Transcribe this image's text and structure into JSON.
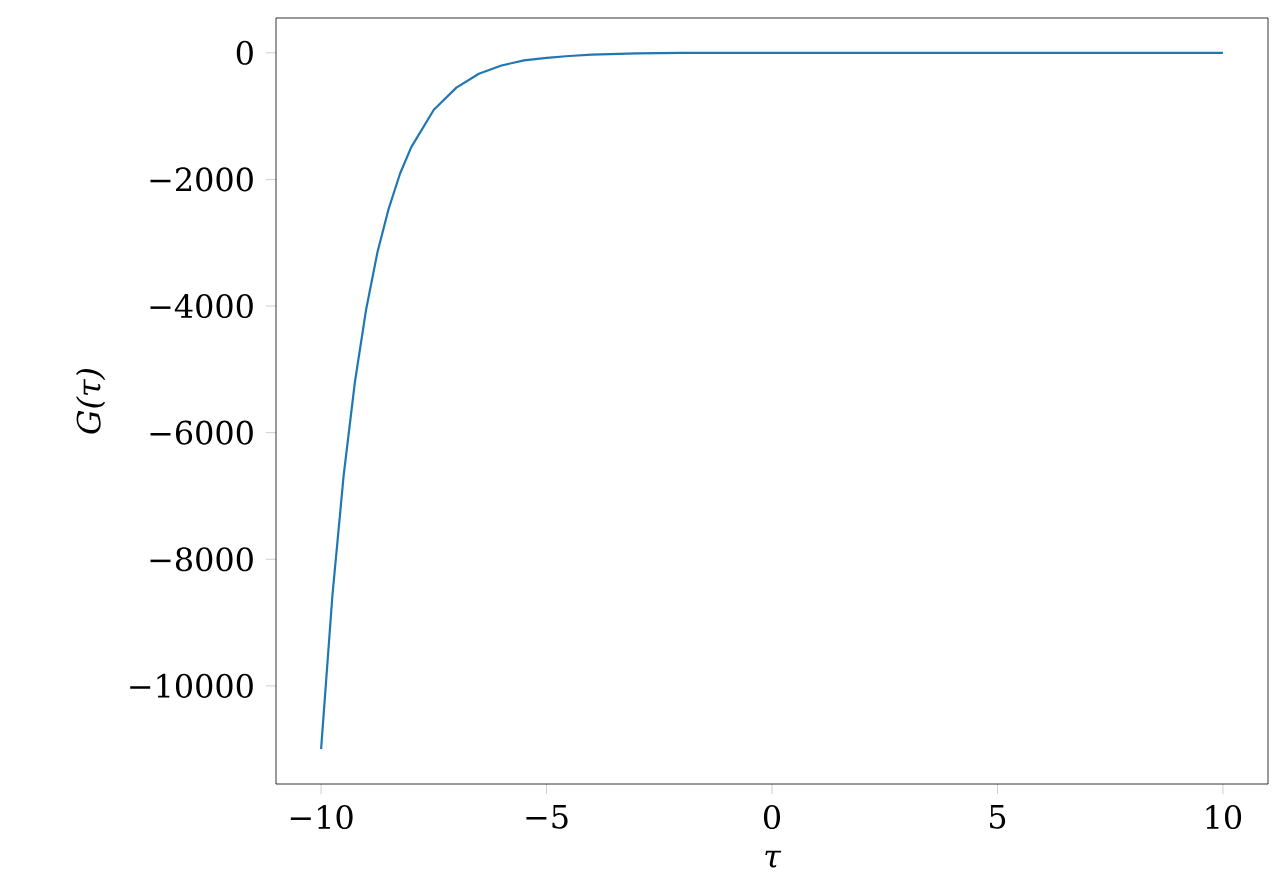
{
  "chart_data": {
    "type": "line",
    "xlabel": "τ",
    "ylabel": "G(τ)",
    "color": "#1f77b4",
    "x": [
      -10,
      -9.75,
      -9.5,
      -9.25,
      -9,
      -8.75,
      -8.5,
      -8.25,
      -8,
      -7.5,
      -7,
      -6.5,
      -6,
      -5.5,
      -5,
      -4.5,
      -4,
      -3,
      -2,
      -1,
      0,
      2,
      4,
      6,
      8,
      10
    ],
    "values": [
      -11000,
      -8580,
      -6680,
      -5200,
      -4050,
      -3150,
      -2460,
      -1910,
      -1490,
      -900,
      -550,
      -330,
      -200,
      -120,
      -80,
      -50,
      -30,
      -10,
      0,
      0,
      0,
      0,
      0,
      0,
      0,
      0
    ],
    "xlim": [
      -11,
      11
    ],
    "ylim": [
      -11550,
      550
    ],
    "xticks": [
      {
        "value": -10,
        "label": "−10"
      },
      {
        "value": -5,
        "label": "−5"
      },
      0,
      5,
      10
    ],
    "yticks": [
      {
        "value": -10000,
        "label": "−10000"
      },
      {
        "value": -8000,
        "label": "−8000"
      },
      {
        "value": -6000,
        "label": "−6000"
      },
      {
        "value": -4000,
        "label": "−4000"
      },
      {
        "value": -2000,
        "label": "−2000"
      },
      0
    ],
    "marker": "none",
    "line_style": "solid"
  }
}
